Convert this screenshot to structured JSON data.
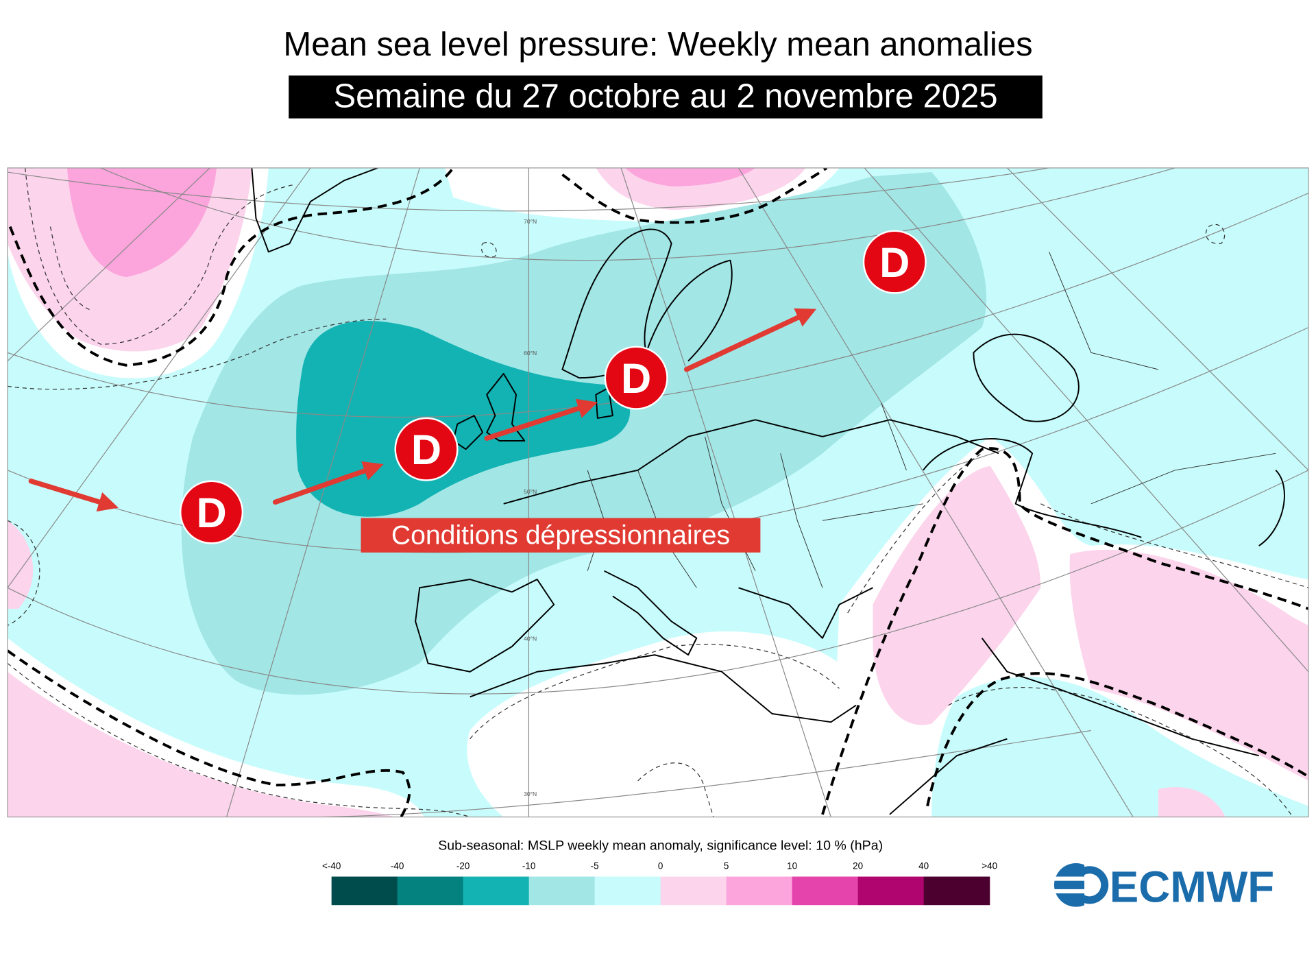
{
  "header": {
    "title": "Mean sea level pressure: Weekly mean anomalies",
    "subtitle": "Semaine du 27 octobre au 2 novembre 2025"
  },
  "map": {
    "latitude_labels": [
      "70°N",
      "60°N",
      "50°N",
      "40°N",
      "30°N"
    ],
    "annotation_label": "Conditions dépressionnaires",
    "low_pressure_marker": "D",
    "marker_color": "#e30613",
    "arrow_color": "#e03a32",
    "low_markers": [
      {
        "label": "D",
        "location": "mid-Atlantic"
      },
      {
        "label": "D",
        "location": "west of Ireland"
      },
      {
        "label": "D",
        "location": "Denmark / North Sea"
      },
      {
        "label": "D",
        "location": "western Russia"
      }
    ]
  },
  "legend": {
    "title": "Sub-seasonal: MSLP weekly mean anomaly, significance level: 10 % (hPa)",
    "tick_labels": [
      "<-40",
      "-40",
      "-20",
      "-10",
      "-5",
      "0",
      "5",
      "10",
      "20",
      "40",
      ">40"
    ],
    "colors": [
      "#004c4c",
      "#038280",
      "#13b3b3",
      "#a2e6e6",
      "#c8fcfc",
      "#fcd4ec",
      "#fca4dc",
      "#e444ac",
      "#b0046f",
      "#4c0030"
    ]
  },
  "logo": {
    "text": "ECMWF",
    "color": "#1b6cab"
  }
}
